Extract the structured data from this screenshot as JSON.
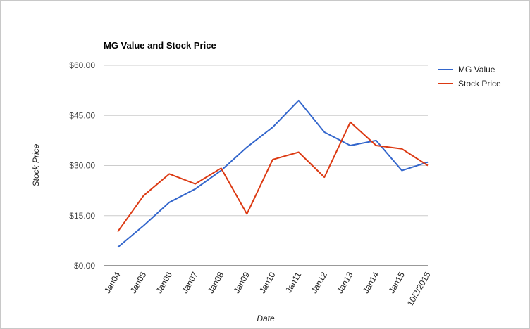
{
  "chart_data": {
    "type": "line",
    "title": "MG Value and Stock Price",
    "xlabel": "Date",
    "ylabel": "Stock Price",
    "categories": [
      "Jan04",
      "Jan05",
      "Jan06",
      "Jan07",
      "Jan08",
      "Jan09",
      "Jan10",
      "Jan11",
      "Jan12",
      "Jan13",
      "Jan14",
      "Jan15",
      "10/2/2015"
    ],
    "ylim": [
      0,
      60
    ],
    "yticks": [
      0,
      15,
      30,
      45,
      60
    ],
    "ytick_labels": [
      "$0.00",
      "$15.00",
      "$30.00",
      "$45.00",
      "$60.00"
    ],
    "grid": true,
    "legend_position": "right",
    "series": [
      {
        "name": "MG Value",
        "color": "#3366cc",
        "values": [
          5.5,
          12.0,
          19.0,
          23.0,
          28.5,
          35.5,
          41.5,
          49.5,
          40.0,
          36.0,
          37.5,
          28.5,
          31.0
        ]
      },
      {
        "name": "Stock Price",
        "color": "#dc3912",
        "values": [
          10.2,
          21.0,
          27.5,
          24.5,
          29.2,
          15.5,
          31.8,
          34.0,
          26.5,
          43.0,
          36.0,
          35.0,
          30.0
        ]
      }
    ]
  }
}
